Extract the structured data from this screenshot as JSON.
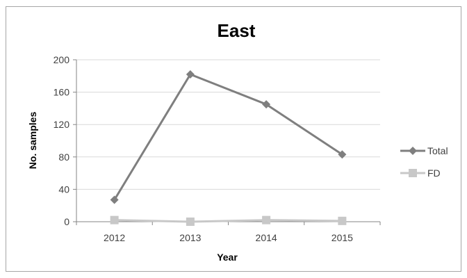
{
  "chart_data": {
    "type": "line",
    "title": "East",
    "xlabel": "Year",
    "ylabel": "No. samples",
    "categories": [
      "2012",
      "2013",
      "2014",
      "2015"
    ],
    "ylim": [
      0,
      200
    ],
    "yticks": [
      "0",
      "40",
      "80",
      "120",
      "160",
      "200"
    ],
    "grid": true,
    "legend_position": "right",
    "series": [
      {
        "name": "Total",
        "values": [
          27,
          182,
          145,
          83
        ],
        "color": "#7f7f7f",
        "marker": "diamond"
      },
      {
        "name": "FD",
        "values": [
          2,
          0,
          2,
          1
        ],
        "color": "#c8c8c8",
        "marker": "square"
      }
    ]
  }
}
